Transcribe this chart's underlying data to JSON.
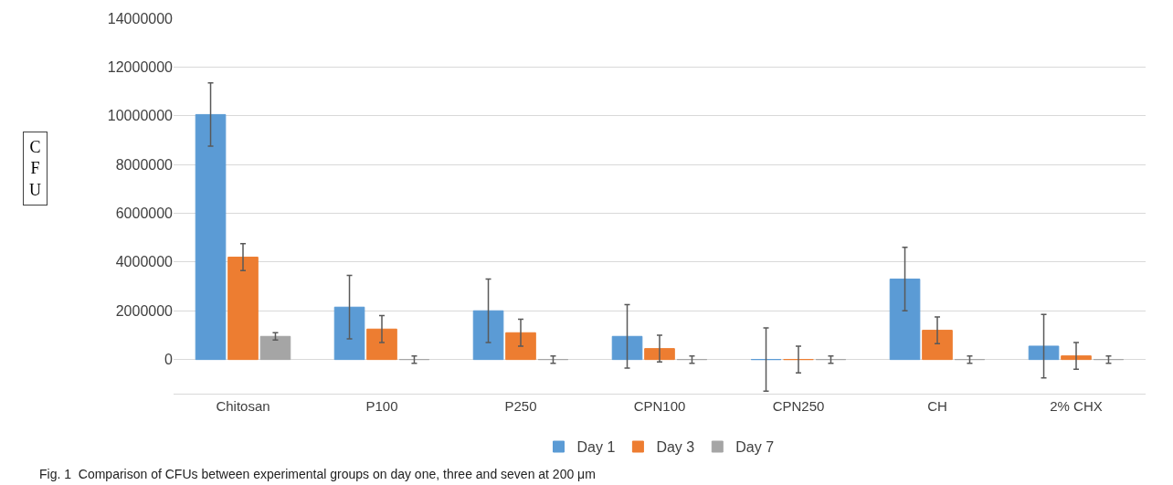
{
  "chart_data": {
    "type": "bar",
    "ylabel": "CFU",
    "categories": [
      "Chitosan",
      "P100",
      "P250",
      "CPN100",
      "CPN250",
      "CH",
      "2% CHX"
    ],
    "series": [
      {
        "name": "Day 1",
        "color": "#5b9bd5",
        "values": [
          10050000,
          2150000,
          2000000,
          950000,
          0,
          3300000,
          550000
        ],
        "errors": [
          1300000,
          1300000,
          1300000,
          1300000,
          1300000,
          1300000,
          1300000
        ]
      },
      {
        "name": "Day 3",
        "color": "#ed7d31",
        "values": [
          4200000,
          1250000,
          1100000,
          450000,
          0,
          1200000,
          150000
        ],
        "errors": [
          550000,
          550000,
          550000,
          550000,
          550000,
          550000,
          550000
        ]
      },
      {
        "name": "Day 7",
        "color": "#a5a5a5",
        "values": [
          950000,
          0,
          0,
          0,
          0,
          0,
          0
        ],
        "errors": [
          150000,
          150000,
          150000,
          150000,
          150000,
          150000,
          150000
        ]
      }
    ],
    "ylim": [
      -1400000,
      14000000
    ],
    "yticks": [
      0,
      2000000,
      4000000,
      6000000,
      8000000,
      10000000,
      12000000,
      14000000
    ],
    "grid": "y",
    "legend": "bottom",
    "annotations": [
      "Fig. 1  Comparison of CFUs between experimental groups on day one, three and seven at 200 μm"
    ]
  }
}
